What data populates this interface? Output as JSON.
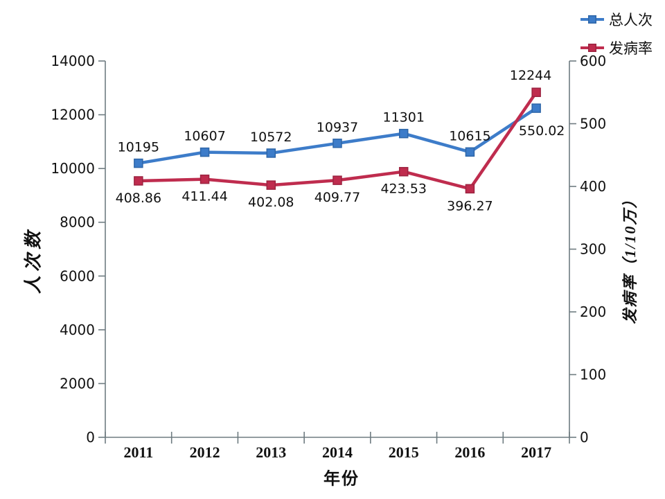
{
  "chart_data": {
    "type": "line",
    "title": "",
    "categories": [
      "2011",
      "2012",
      "2013",
      "2014",
      "2015",
      "2016",
      "2017"
    ],
    "series": [
      {
        "name": "总人次",
        "axis": "left",
        "color": "#3D7CC9",
        "marker_border": "#2E66A8",
        "marker": "square",
        "values": [
          10195,
          10607,
          10572,
          10937,
          11301,
          10615,
          12244
        ],
        "labels": [
          "10195",
          "10607",
          "10572",
          "10937",
          "11301",
          "10615",
          "12244"
        ]
      },
      {
        "name": "发病率",
        "axis": "right",
        "color": "#BF2C4E",
        "marker_border": "#9C2340",
        "marker": "square",
        "values": [
          408.86,
          411.44,
          402.08,
          409.77,
          423.53,
          396.27,
          550.02
        ],
        "labels": [
          "408.86",
          "411.44",
          "402.08",
          "409.77",
          "423.53",
          "396.27",
          "550.02"
        ]
      }
    ],
    "xlabel": "年份",
    "ylabel_left": "人次数",
    "ylabel_right": "发病率（1/10万）",
    "left_axis": {
      "min": 0,
      "max": 14000,
      "step": 2000,
      "ticks": [
        "0",
        "2000",
        "4000",
        "6000",
        "8000",
        "10000",
        "12000",
        "14000"
      ]
    },
    "right_axis": {
      "min": 0,
      "max": 600,
      "step": 100,
      "ticks": [
        "0",
        "100",
        "200",
        "300",
        "400",
        "500",
        "600"
      ]
    },
    "legend": {
      "position": "top-right",
      "entries": [
        "总人次",
        "发病率"
      ]
    },
    "grid": false,
    "axis_color": "#6E7B80",
    "text_color": "#111111",
    "background": "#FFFFFF"
  }
}
